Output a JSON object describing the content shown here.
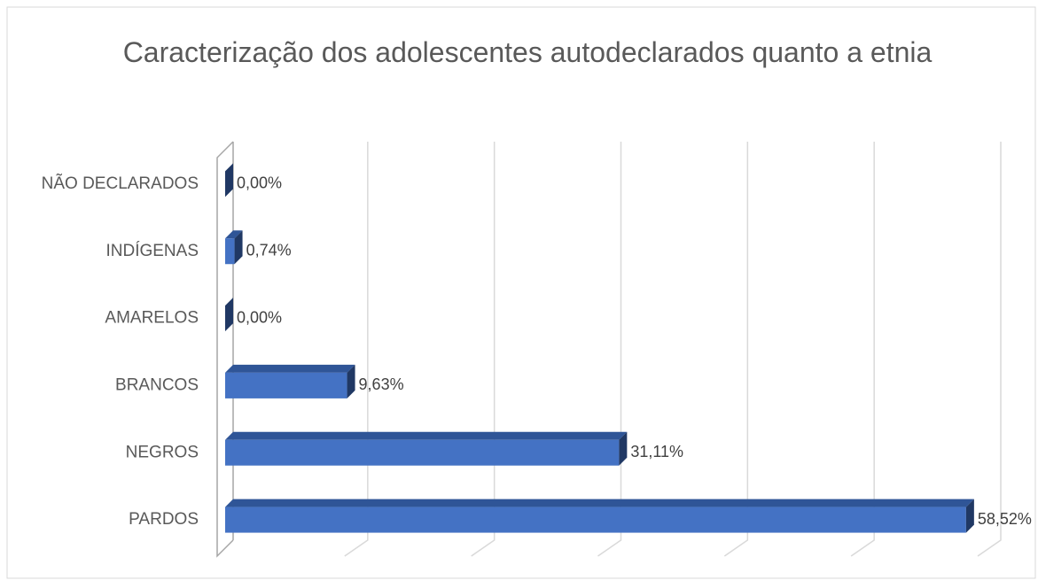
{
  "chart_data": {
    "type": "bar",
    "orientation": "horizontal",
    "title": "Caracterização dos adolescentes autodeclarados quanto a etnia",
    "categories": [
      "NÃO DECLARADOS",
      "INDÍGENAS",
      "AMARELOS",
      "BRANCOS",
      "NEGROS",
      "PARDOS"
    ],
    "values": [
      0,
      0.74,
      0,
      9.63,
      31.11,
      58.52
    ],
    "value_labels": [
      "0,00%",
      "0,74%",
      "0,00%",
      "9,63%",
      "31,11%",
      "58,52%"
    ],
    "color": "#4472c4",
    "xlim": [
      0,
      60
    ],
    "xticks": [
      0,
      10,
      20,
      30,
      40,
      50,
      60
    ],
    "grid": true
  }
}
